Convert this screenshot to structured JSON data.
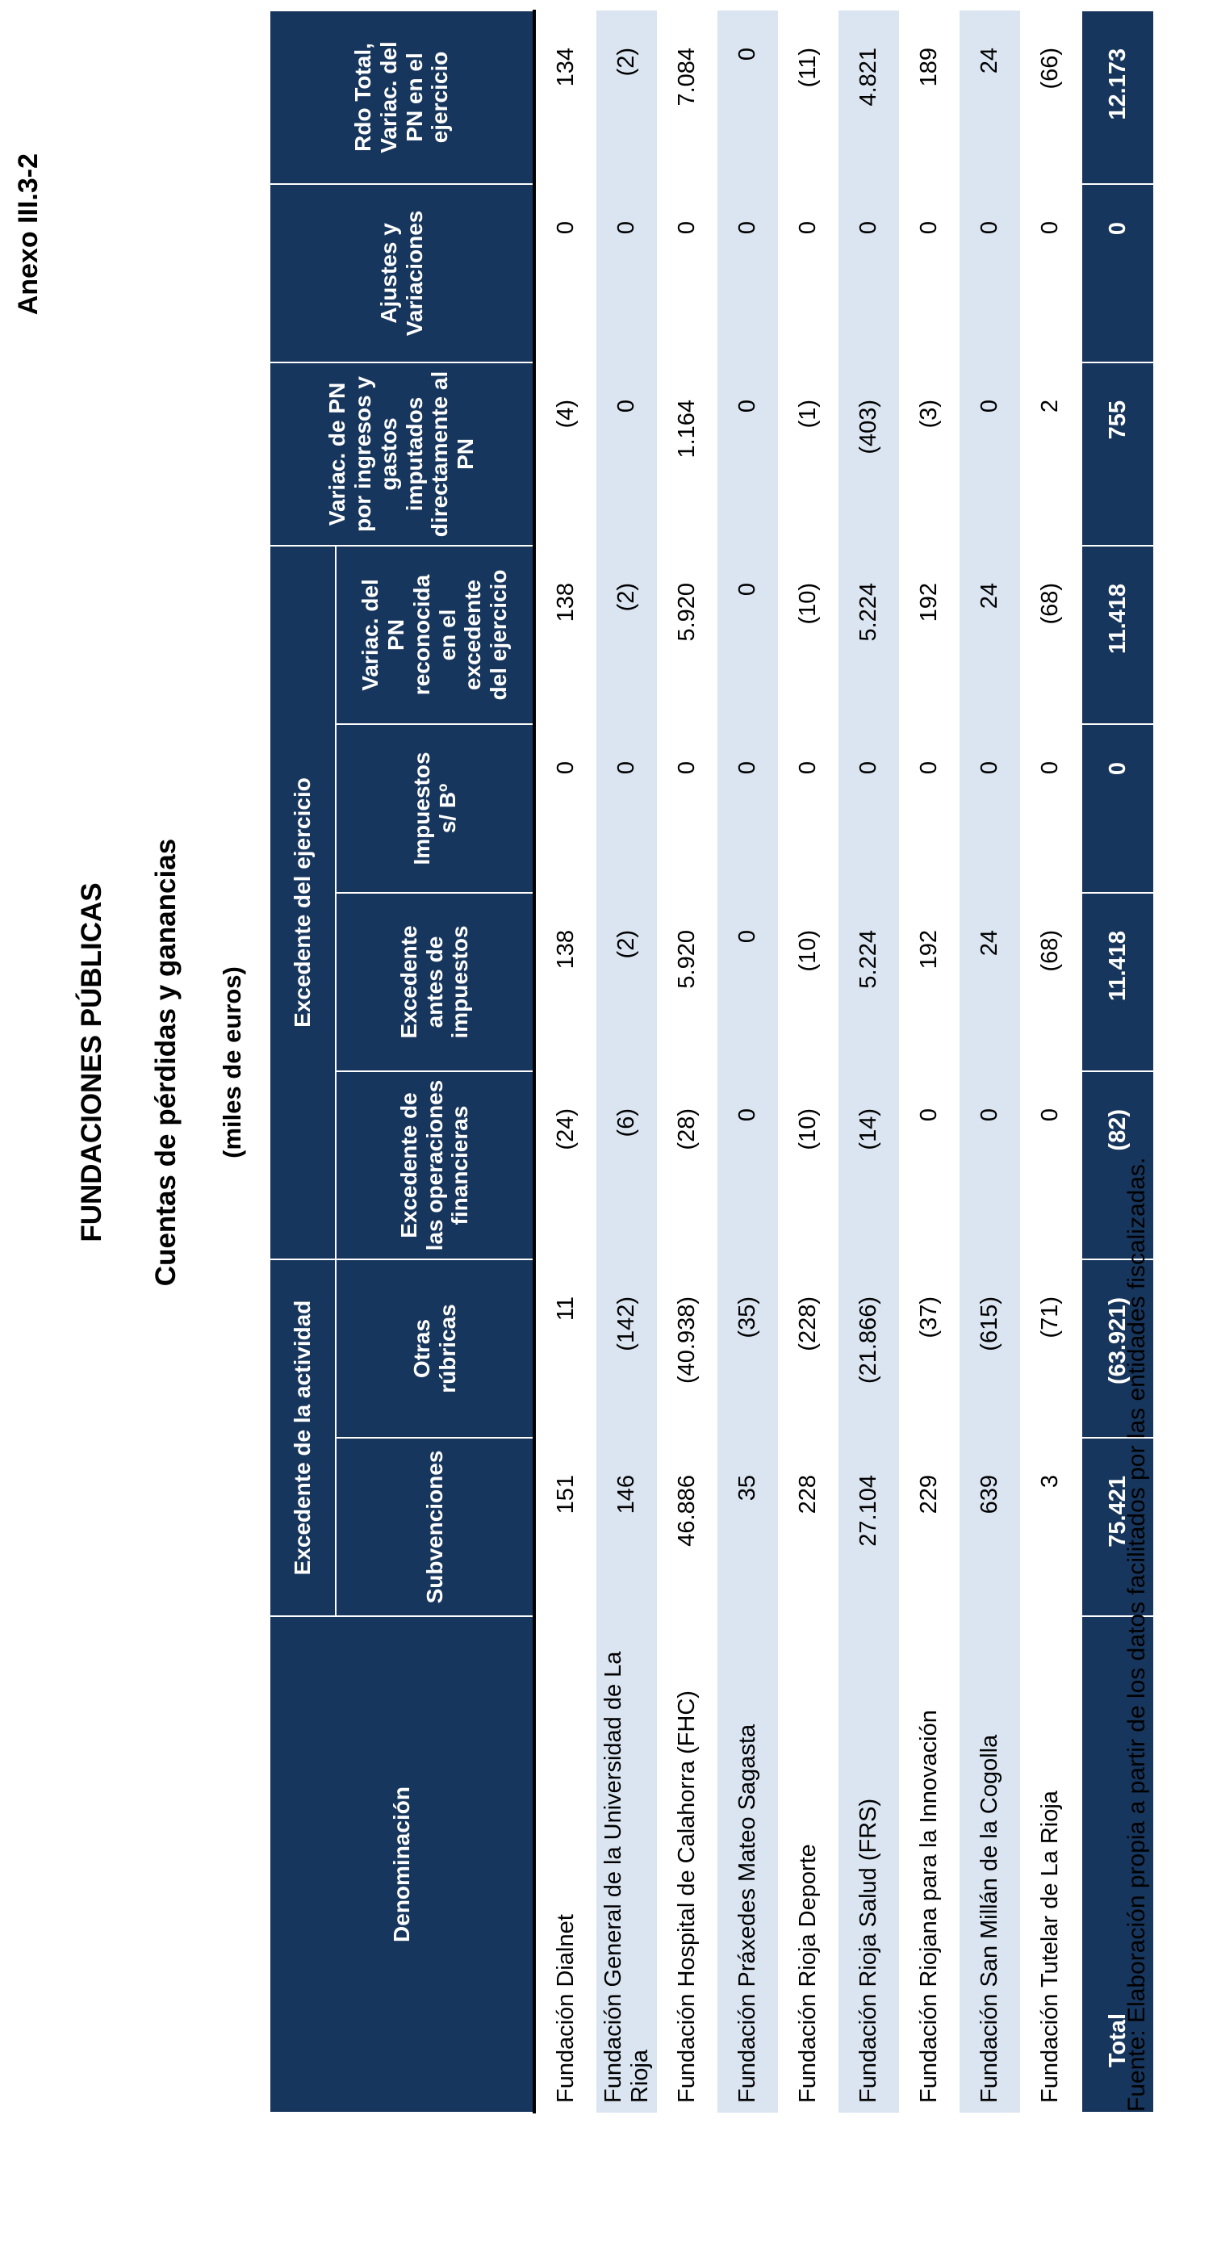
{
  "annex_label": "Anexo III.3-2",
  "title": "FUNDACIONES PÚBLICAS",
  "subtitle": "Cuentas de pérdidas y ganancias",
  "units_note": "(miles de euros)",
  "source_note": "Fuente: Elaboración propia a partir de los datos facilitados por las entidades fiscalizadas.",
  "colors": {
    "header_navy": "#17365d",
    "row_stripe_blue": "#dbe5f1",
    "header_text": "#ffffff",
    "body_text": "#000000"
  },
  "table": {
    "denominacion_header": "Denominación",
    "groups": {
      "actividad": "Excedente de la actividad",
      "ejercicio": "Excedente del ejercicio"
    },
    "columns": [
      "Subvenciones",
      "Otras rúbricas",
      "Excedente de las operaciones financieras",
      "Excedente antes de impuestos",
      "Impuestos s/ Bº",
      "Variac. del PN reconocida en el excedente del ejercicio",
      "Variac. de PN por ingresos y gastos imputados directamente al PN",
      "Ajustes y Variaciones",
      "Rdo Total, Variac. del PN en el ejercicio"
    ],
    "rows": [
      {
        "name": "Fundación Dialnet",
        "values": [
          "151",
          "11",
          "(24)",
          "138",
          "0",
          "138",
          "(4)",
          "0",
          "134"
        ]
      },
      {
        "name": "Fundación General de la Universidad de La Rioja",
        "values": [
          "146",
          "(142)",
          "(6)",
          "(2)",
          "0",
          "(2)",
          "0",
          "0",
          "(2)"
        ]
      },
      {
        "name": "Fundación Hospital de Calahorra (FHC)",
        "values": [
          "46.886",
          "(40.938)",
          "(28)",
          "5.920",
          "0",
          "5.920",
          "1.164",
          "0",
          "7.084"
        ]
      },
      {
        "name": "Fundación Práxedes Mateo Sagasta",
        "values": [
          "35",
          "(35)",
          "0",
          "0",
          "0",
          "0",
          "0",
          "0",
          "0"
        ]
      },
      {
        "name": "Fundación Rioja Deporte",
        "values": [
          "228",
          "(228)",
          "(10)",
          "(10)",
          "0",
          "(10)",
          "(1)",
          "0",
          "(11)"
        ]
      },
      {
        "name": "Fundación Rioja Salud (FRS)",
        "values": [
          "27.104",
          "(21.866)",
          "(14)",
          "5.224",
          "0",
          "5.224",
          "(403)",
          "0",
          "4.821"
        ]
      },
      {
        "name": "Fundación Riojana para la Innovación",
        "values": [
          "229",
          "(37)",
          "0",
          "192",
          "0",
          "192",
          "(3)",
          "0",
          "189"
        ]
      },
      {
        "name": "Fundación San Millán de la Cogolla",
        "values": [
          "639",
          "(615)",
          "0",
          "24",
          "0",
          "24",
          "0",
          "0",
          "24"
        ]
      },
      {
        "name": "Fundación Tutelar de La Rioja",
        "values": [
          "3",
          "(71)",
          "0",
          "(68)",
          "0",
          "(68)",
          "2",
          "0",
          "(66)"
        ]
      }
    ],
    "total_row": {
      "name": "Total",
      "values": [
        "75.421",
        "(63.921)",
        "(82)",
        "11.418",
        "0",
        "11.418",
        "755",
        "0",
        "12.173"
      ]
    }
  }
}
